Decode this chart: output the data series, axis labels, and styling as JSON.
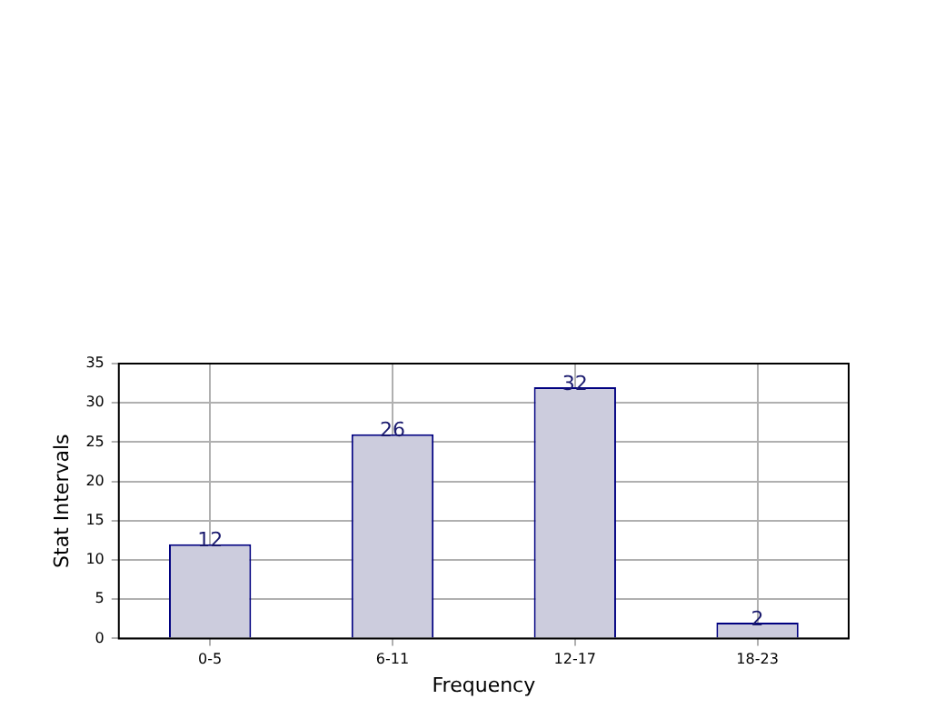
{
  "chart_data": {
    "type": "bar",
    "xlabel": "Frequency",
    "ylabel": "Stat Intervals",
    "categories": [
      "0-5",
      "6-11",
      "12-17",
      "18-23"
    ],
    "values": [
      12,
      26,
      32,
      2
    ],
    "color": "#ccccdd",
    "ylim": [
      0,
      35
    ],
    "yticks": [
      0,
      5,
      10,
      15,
      20,
      25,
      30,
      35
    ],
    "grid": true,
    "data_labels": true
  }
}
